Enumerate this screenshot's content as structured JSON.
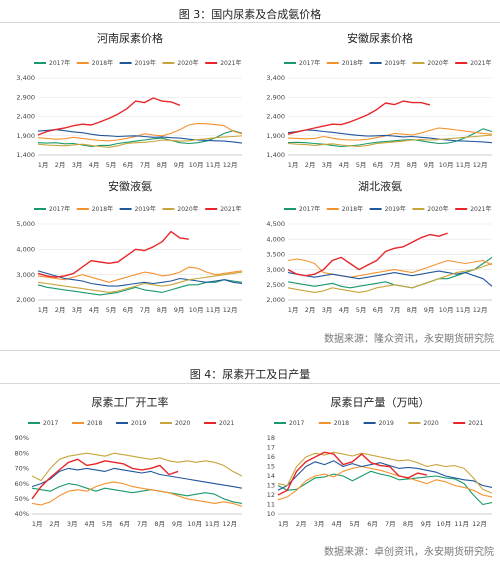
{
  "figures": [
    {
      "title": "图 3：国内尿素及合成氨价格",
      "source": "数据来源：隆众资讯，永安期货研究院"
    },
    {
      "title": "图 4：尿素开工及日产量",
      "source": "数据来源：卓创资讯，永安期货研究院"
    }
  ],
  "chart_data": [
    {
      "type": "line",
      "title": "河南尿素价格",
      "x_ticks": [
        "1月",
        "2月",
        "3月",
        "4月",
        "5月",
        "6月",
        "7月",
        "8月",
        "9月",
        "10月",
        "11月",
        "12月"
      ],
      "ylim": [
        1400,
        3400
      ],
      "y_ticks": [
        "1,400",
        "1,900",
        "2,400",
        "2,900",
        "3,400"
      ],
      "grid": true,
      "legend": "top",
      "series": [
        {
          "name": "2017年",
          "color": "#1a9a6c",
          "values": [
            1720,
            1710,
            1720,
            1690,
            1700,
            1660,
            1620,
            1650,
            1650,
            1700,
            1730,
            1760,
            1790,
            1820,
            1840,
            1780,
            1720,
            1700,
            1720,
            1760,
            1850,
            1960,
            2030,
            1970
          ]
        },
        {
          "name": "2018年",
          "color": "#f5922f",
          "values": [
            1850,
            1830,
            1810,
            1820,
            1860,
            1830,
            1800,
            1780,
            1770,
            1790,
            1830,
            1880,
            1950,
            1920,
            1900,
            1960,
            2060,
            2180,
            2220,
            2210,
            2190,
            2160,
            2020,
            1950
          ]
        },
        {
          "name": "2019年",
          "color": "#21579d",
          "values": [
            2020,
            2040,
            2060,
            2030,
            2000,
            1980,
            1940,
            1910,
            1900,
            1880,
            1890,
            1900,
            1880,
            1860,
            1870,
            1850,
            1840,
            1810,
            1790,
            1780,
            1770,
            1760,
            1740,
            1710
          ]
        },
        {
          "name": "2020年",
          "color": "#c8a53a",
          "values": [
            1680,
            1660,
            1650,
            1640,
            1660,
            1680,
            1650,
            1620,
            1600,
            1640,
            1700,
            1720,
            1730,
            1750,
            1790,
            1780,
            1760,
            1770,
            1800,
            1820,
            1850,
            1870,
            1880,
            1900
          ]
        },
        {
          "name": "2021年",
          "color": "#e8262a",
          "values": [
            1920,
            2010,
            2060,
            2100,
            2160,
            2200,
            2180,
            2260,
            2350,
            2460,
            2600,
            2800,
            2760,
            2880,
            2800,
            2780,
            2690
          ]
        }
      ]
    },
    {
      "type": "line",
      "title": "安徽尿素价格",
      "x_ticks": [
        "1月",
        "2月",
        "3月",
        "4月",
        "5月",
        "6月",
        "7月",
        "8月",
        "9月",
        "10月",
        "11月",
        "12月"
      ],
      "ylim": [
        1400,
        3400
      ],
      "y_ticks": [
        "1,400",
        "1,900",
        "2,400",
        "2,900",
        "3,400"
      ],
      "grid": true,
      "legend": "top",
      "series": [
        {
          "name": "2017年",
          "color": "#1a9a6c",
          "values": [
            1720,
            1730,
            1720,
            1700,
            1680,
            1650,
            1620,
            1640,
            1660,
            1700,
            1730,
            1750,
            1770,
            1790,
            1800,
            1770,
            1730,
            1700,
            1710,
            1760,
            1850,
            1960,
            2080,
            2010
          ]
        },
        {
          "name": "2018年",
          "color": "#f5922f",
          "values": [
            1840,
            1830,
            1820,
            1830,
            1880,
            1840,
            1800,
            1790,
            1790,
            1810,
            1850,
            1900,
            1960,
            1940,
            1920,
            1970,
            2040,
            2100,
            2080,
            2050,
            2020,
            1990,
            1960,
            1940
          ]
        },
        {
          "name": "2019年",
          "color": "#21579d",
          "values": [
            1980,
            2010,
            2050,
            2040,
            2010,
            1990,
            1960,
            1930,
            1910,
            1890,
            1900,
            1910,
            1890,
            1870,
            1880,
            1860,
            1840,
            1810,
            1790,
            1770,
            1760,
            1750,
            1740,
            1720
          ]
        },
        {
          "name": "2020年",
          "color": "#c8a53a",
          "values": [
            1700,
            1680,
            1670,
            1650,
            1670,
            1690,
            1660,
            1640,
            1620,
            1650,
            1700,
            1720,
            1740,
            1760,
            1790,
            1800,
            1790,
            1800,
            1820,
            1840,
            1860,
            1880,
            1900,
            1920
          ]
        },
        {
          "name": "2021年",
          "color": "#e8262a",
          "values": [
            1940,
            2000,
            2050,
            2100,
            2150,
            2200,
            2190,
            2260,
            2350,
            2450,
            2580,
            2750,
            2710,
            2800,
            2760,
            2760,
            2700
          ]
        }
      ]
    },
    {
      "type": "line",
      "title": "安徽液氨",
      "x_ticks": [
        "1月",
        "2月",
        "3月",
        "4月",
        "5月",
        "6月",
        "7月",
        "8月",
        "9月",
        "10月",
        "11月",
        "12月"
      ],
      "ylim": [
        2000,
        5000
      ],
      "y_ticks": [
        "2,000",
        "3,000",
        "4,000",
        "5,000"
      ],
      "grid": true,
      "legend": "top",
      "series": [
        {
          "name": "2017年",
          "color": "#1a9a6c",
          "values": [
            2600,
            2500,
            2450,
            2400,
            2350,
            2300,
            2250,
            2200,
            2250,
            2300,
            2400,
            2500,
            2400,
            2350,
            2300,
            2400,
            2500,
            2600,
            2600,
            2700,
            2700,
            2800,
            2750,
            2700
          ]
        },
        {
          "name": "2018年",
          "color": "#f5922f",
          "values": [
            2950,
            2900,
            2850,
            2800,
            2900,
            3000,
            2900,
            2800,
            2700,
            2800,
            2900,
            3000,
            3100,
            3050,
            2950,
            3000,
            3100,
            3300,
            3250,
            3100,
            3000,
            3050,
            3100,
            3150
          ]
        },
        {
          "name": "2019年",
          "color": "#21579d",
          "values": [
            3150,
            3050,
            2950,
            2850,
            2800,
            2750,
            2650,
            2600,
            2550,
            2550,
            2600,
            2650,
            2700,
            2650,
            2700,
            2750,
            2850,
            2800,
            2750,
            2700,
            2750,
            2800,
            2700,
            2650
          ]
        },
        {
          "name": "2020年",
          "color": "#c8a53a",
          "values": [
            2700,
            2650,
            2600,
            2550,
            2500,
            2450,
            2400,
            2350,
            2300,
            2350,
            2450,
            2550,
            2650,
            2600,
            2550,
            2600,
            2700,
            2800,
            2850,
            2900,
            2950,
            3000,
            3050,
            3100
          ]
        },
        {
          "name": "2021年",
          "color": "#e8262a",
          "values": [
            3050,
            2950,
            2900,
            2950,
            3050,
            3300,
            3550,
            3500,
            3450,
            3500,
            3750,
            4000,
            3950,
            4100,
            4300,
            4700,
            4450,
            4400
          ]
        }
      ]
    },
    {
      "type": "line",
      "title": "湖北液氨",
      "x_ticks": [
        "1月",
        "2月",
        "3月",
        "4月",
        "5月",
        "6月",
        "7月",
        "8月",
        "9月",
        "10月",
        "11月",
        "12月"
      ],
      "ylim": [
        2000,
        4500
      ],
      "y_ticks": [
        "2,000",
        "2,500",
        "3,000",
        "3,500",
        "4,000",
        "4,500"
      ],
      "grid": true,
      "legend": "top",
      "series": [
        {
          "name": "2017年",
          "color": "#1a9a6c",
          "values": [
            2600,
            2550,
            2500,
            2450,
            2500,
            2550,
            2450,
            2400,
            2450,
            2500,
            2550,
            2600,
            2500,
            2450,
            2400,
            2500,
            2600,
            2700,
            2700,
            2800,
            2900,
            3000,
            3200,
            3400
          ]
        },
        {
          "name": "2018年",
          "color": "#f5922f",
          "values": [
            3300,
            3350,
            3300,
            3200,
            2900,
            2850,
            2800,
            2750,
            2800,
            2850,
            2900,
            2950,
            3000,
            2950,
            2900,
            3000,
            3100,
            3200,
            3300,
            3250,
            3200,
            3250,
            3300,
            3150
          ]
        },
        {
          "name": "2019年",
          "color": "#21579d",
          "values": [
            2900,
            2850,
            2800,
            2750,
            2800,
            2850,
            2800,
            2750,
            2700,
            2750,
            2800,
            2850,
            2900,
            2850,
            2800,
            2850,
            2900,
            2950,
            2900,
            2850,
            2900,
            2800,
            2700,
            2450
          ]
        },
        {
          "name": "2020年",
          "color": "#c8a53a",
          "values": [
            2400,
            2350,
            2300,
            2250,
            2300,
            2400,
            2350,
            2300,
            2250,
            2300,
            2400,
            2450,
            2500,
            2450,
            2400,
            2500,
            2600,
            2700,
            2800,
            2900,
            2950,
            3000,
            3100,
            3200
          ]
        },
        {
          "name": "2021年",
          "color": "#e8262a",
          "values": [
            3000,
            2850,
            2800,
            2850,
            3000,
            3300,
            3400,
            3200,
            3000,
            3150,
            3300,
            3600,
            3700,
            3750,
            3900,
            4050,
            4150,
            4100,
            4200
          ]
        }
      ]
    },
    {
      "type": "line",
      "title": "尿素工厂开工率",
      "x_ticks": [
        "1月",
        "2月",
        "3月",
        "4月",
        "5月",
        "6月",
        "7月",
        "8月",
        "9月",
        "10月",
        "11月",
        "12月"
      ],
      "ylim": [
        40,
        90
      ],
      "y_ticks": [
        "40%",
        "50%",
        "60%",
        "70%",
        "80%",
        "90%"
      ],
      "grid": false,
      "legend": "top",
      "series": [
        {
          "name": "2017",
          "color": "#1a9a6c",
          "values": [
            57,
            56,
            55,
            58,
            60,
            59,
            57,
            55,
            57,
            56,
            55,
            54,
            55,
            56,
            55,
            54,
            53,
            52,
            53,
            54,
            53,
            50,
            48,
            47
          ]
        },
        {
          "name": "2018",
          "color": "#f5922f",
          "values": [
            47,
            46,
            48,
            52,
            55,
            56,
            55,
            58,
            60,
            61,
            60,
            58,
            57,
            56,
            55,
            54,
            52,
            50,
            49,
            48,
            47,
            48,
            47,
            45
          ]
        },
        {
          "name": "2019",
          "color": "#21579d",
          "values": [
            58,
            60,
            63,
            68,
            70,
            69,
            70,
            69,
            68,
            70,
            69,
            68,
            67,
            68,
            66,
            65,
            64,
            63,
            62,
            61,
            60,
            59,
            58,
            57
          ]
        },
        {
          "name": "2020",
          "color": "#c8a53a",
          "values": [
            65,
            62,
            70,
            76,
            78,
            79,
            80,
            79,
            78,
            80,
            79,
            78,
            77,
            76,
            77,
            75,
            74,
            75,
            74,
            75,
            74,
            72,
            68,
            65
          ]
        },
        {
          "name": "2021",
          "color": "#e8262a",
          "values": [
            50,
            58,
            64,
            69,
            74,
            76,
            72,
            73,
            75,
            74,
            73,
            70,
            69,
            70,
            72,
            66,
            68
          ]
        }
      ]
    },
    {
      "type": "line",
      "title": "尿素日产量（万吨）",
      "x_ticks": [
        "1月",
        "2月",
        "3月",
        "4月",
        "5月",
        "6月",
        "7月",
        "8月",
        "9月",
        "10月",
        "11月",
        "12月"
      ],
      "ylim": [
        10,
        18
      ],
      "y_ticks": [
        "10",
        "11",
        "12",
        "13",
        "14",
        "15",
        "16",
        "17",
        "18"
      ],
      "grid": false,
      "legend": "top",
      "series": [
        {
          "name": "2017",
          "color": "#1a9a6c",
          "values": [
            13.0,
            12.5,
            12.6,
            13.2,
            13.8,
            13.9,
            14.2,
            14.0,
            13.5,
            14.0,
            14.5,
            14.2,
            14.0,
            13.6,
            13.7,
            13.8,
            13.9,
            14.0,
            13.8,
            13.7,
            13.2,
            12.0,
            11.0,
            11.2
          ]
        },
        {
          "name": "2018",
          "color": "#f5922f",
          "values": [
            11.5,
            11.8,
            12.5,
            13.5,
            14.0,
            14.2,
            13.9,
            14.5,
            14.8,
            15.0,
            14.8,
            14.6,
            14.3,
            14.0,
            13.8,
            13.5,
            13.2,
            13.6,
            13.4,
            13.0,
            12.8,
            12.5,
            12.0,
            11.8
          ]
        },
        {
          "name": "2019",
          "color": "#21579d",
          "values": [
            12.5,
            13.0,
            14.0,
            15.0,
            15.5,
            15.2,
            15.6,
            15.0,
            15.3,
            15.0,
            15.2,
            15.4,
            15.1,
            14.8,
            14.9,
            14.8,
            14.6,
            14.4,
            14.0,
            13.8,
            13.6,
            13.5,
            13.0,
            12.8
          ]
        },
        {
          "name": "2020",
          "color": "#c8a53a",
          "values": [
            13.2,
            13.0,
            15.0,
            16.0,
            16.4,
            16.2,
            16.5,
            16.3,
            16.1,
            16.4,
            16.2,
            16.0,
            15.8,
            15.6,
            15.7,
            15.4,
            15.0,
            15.2,
            15.0,
            15.1,
            14.8,
            13.8,
            12.6,
            12.2
          ]
        },
        {
          "name": "2021",
          "color": "#e8262a",
          "values": [
            12.0,
            12.5,
            14.5,
            15.5,
            16.0,
            16.5,
            16.3,
            15.2,
            15.5,
            16.3,
            15.4,
            15.1,
            15.0,
            14.0,
            13.8,
            14.3,
            14.1
          ]
        }
      ]
    }
  ]
}
